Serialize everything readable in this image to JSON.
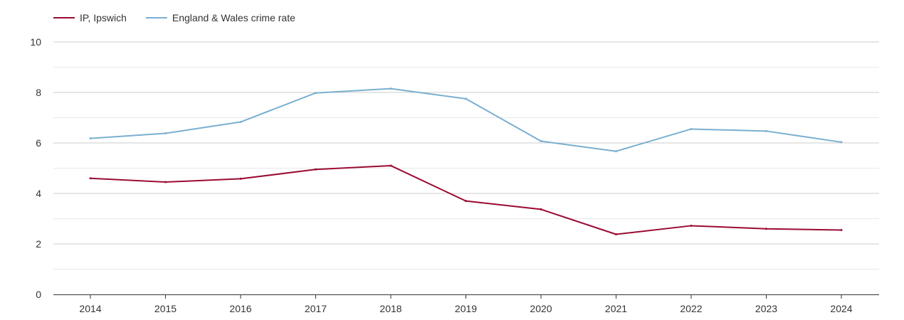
{
  "chart_data": {
    "type": "line",
    "title": "",
    "xlabel": "",
    "ylabel": "",
    "x": [
      "2014",
      "2015",
      "2016",
      "2017",
      "2018",
      "2019",
      "2020",
      "2021",
      "2022",
      "2023",
      "2024"
    ],
    "ylim": [
      0,
      10
    ],
    "yticks": [
      0,
      2,
      4,
      6,
      8,
      10
    ],
    "grid": true,
    "legend_position": "top-left",
    "series": [
      {
        "name": "IP, Ipswich",
        "color": "#9b0a32",
        "values": [
          4.6,
          4.45,
          4.58,
          4.95,
          5.1,
          3.7,
          3.37,
          2.38,
          2.72,
          2.6,
          2.55
        ]
      },
      {
        "name": "England & Wales crime rate",
        "color": "#7aafd0",
        "values": [
          6.18,
          6.38,
          6.83,
          7.98,
          8.15,
          7.75,
          6.07,
          5.67,
          6.55,
          6.47,
          6.03
        ]
      }
    ]
  }
}
